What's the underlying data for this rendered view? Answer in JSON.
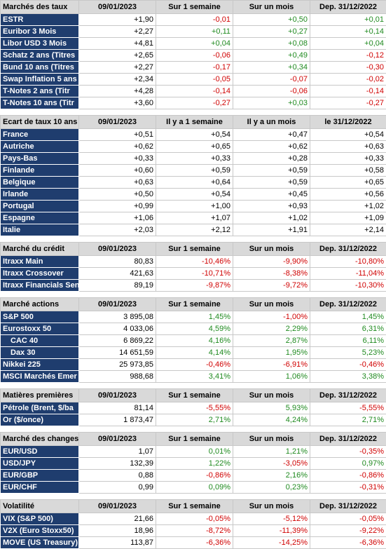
{
  "sections": [
    {
      "id": "taux",
      "headers": [
        "Marchés des taux",
        "09/01/2023",
        "Sur 1 semaine",
        "Sur un mois",
        "Dep. 31/12/2022"
      ],
      "rows": [
        [
          "ESTR",
          "+1,90",
          "-0,01",
          "+0,50",
          "+0,01"
        ],
        [
          "Euribor 3 Mois",
          "+2,27",
          "+0,11",
          "+0,27",
          "+0,14"
        ],
        [
          "Libor USD 3 Mois",
          "+4,81",
          "+0,04",
          "+0,08",
          "+0,04"
        ],
        [
          "Schatz 2 ans (Titres",
          "+2,65",
          "-0,06",
          "+0,49",
          "-0,12"
        ],
        [
          "Bund 10 ans (Titres",
          "+2,27",
          "-0,17",
          "+0,34",
          "-0,30"
        ],
        [
          "Swap Inflation 5 ans",
          "+2,34",
          "-0,05",
          "-0,07",
          "-0,02"
        ],
        [
          "T-Notes 2 ans (Titr",
          "+4,28",
          "-0,14",
          "-0,06",
          "-0,14"
        ],
        [
          "T-Notes 10 ans (Titr",
          "+3,60",
          "-0,27",
          "+0,03",
          "-0,27"
        ]
      ]
    },
    {
      "id": "ecart",
      "headers": [
        "Ecart de taux 10 ans",
        "09/01/2023",
        "Il y a 1 semaine",
        "Il y a un mois",
        "le 31/12/2022"
      ],
      "rows": [
        [
          "France",
          "+0,51",
          "+0,54",
          "+0,47",
          "+0,54"
        ],
        [
          "Autriche",
          "+0,62",
          "+0,65",
          "+0,62",
          "+0,63"
        ],
        [
          "Pays-Bas",
          "+0,33",
          "+0,33",
          "+0,28",
          "+0,33"
        ],
        [
          "Finlande",
          "+0,60",
          "+0,59",
          "+0,59",
          "+0,58"
        ],
        [
          "Belgique",
          "+0,63",
          "+0,64",
          "+0,59",
          "+0,65"
        ],
        [
          "Irlande",
          "+0,50",
          "+0,54",
          "+0,45",
          "+0,56"
        ],
        [
          "Portugal",
          "+0,99",
          "+1,00",
          "+0,93",
          "+1,02"
        ],
        [
          "Espagne",
          "+1,06",
          "+1,07",
          "+1,02",
          "+1,09"
        ],
        [
          "Italie",
          "+2,03",
          "+2,12",
          "+1,91",
          "+2,14"
        ]
      ]
    },
    {
      "id": "credit",
      "headers": [
        "Marché du crédit",
        "09/01/2023",
        "Sur 1 semaine",
        "Sur un mois",
        "Dep. 31/12/2022"
      ],
      "rows": [
        [
          "Itraxx Main",
          "80,83",
          "-10,46%",
          "-9,90%",
          "-10,80%"
        ],
        [
          "Itraxx Crossover",
          "421,63",
          "-10,71%",
          "-8,38%",
          "-11,04%"
        ],
        [
          "Itraxx Financials Sen",
          "89,19",
          "-9,87%",
          "-9,72%",
          "-10,30%"
        ]
      ]
    },
    {
      "id": "actions",
      "headers": [
        "Marché actions",
        "09/01/2023",
        "Sur 1 semaine",
        "Sur un mois",
        "Dep. 31/12/2022"
      ],
      "rows": [
        [
          "S&P 500",
          "3 895,08",
          "1,45%",
          "-1,00%",
          "1,45%"
        ],
        [
          "Eurostoxx 50",
          "4 033,06",
          "4,59%",
          "2,29%",
          "6,31%"
        ],
        [
          "CAC 40",
          "6 869,22",
          "4,16%",
          "2,87%",
          "6,11%"
        ],
        [
          "Dax 30",
          "14 651,59",
          "4,14%",
          "1,95%",
          "5,23%"
        ],
        [
          "Nikkei 225",
          "25 973,85",
          "-0,46%",
          "-6,91%",
          "-0,46%"
        ],
        [
          "MSCI Marchés Emer",
          "988,68",
          "3,41%",
          "1,06%",
          "3,38%"
        ]
      ]
    },
    {
      "id": "matieres",
      "headers": [
        "Matières premières",
        "09/01/2023",
        "Sur 1 semaine",
        "Sur un mois",
        "Dep. 31/12/2022"
      ],
      "rows": [
        [
          "Pétrole (Brent, $/ba",
          "81,14",
          "-5,55%",
          "5,93%",
          "-5,55%"
        ],
        [
          "Or ($/once)",
          "1 873,47",
          "2,71%",
          "4,24%",
          "2,71%"
        ]
      ]
    },
    {
      "id": "changes",
      "headers": [
        "Marché des changes",
        "09/01/2023",
        "Sur 1 semaine",
        "Sur un mois",
        "Dep. 31/12/2022"
      ],
      "rows": [
        [
          "EUR/USD",
          "1,07",
          "0,01%",
          "1,21%",
          "-0,35%"
        ],
        [
          "USD/JPY",
          "132,39",
          "1,22%",
          "-3,05%",
          "0,97%"
        ],
        [
          "EUR/GBP",
          "0,88",
          "-0,86%",
          "2,16%",
          "-0,86%"
        ],
        [
          "EUR/CHF",
          "0,99",
          "0,09%",
          "0,23%",
          "-0,31%"
        ]
      ]
    },
    {
      "id": "volatilite",
      "headers": [
        "Volatilité",
        "09/01/2023",
        "Sur 1 semaine",
        "Sur un mois",
        "Dep. 31/12/2022"
      ],
      "rows": [
        [
          "VIX (S&P 500)",
          "21,66",
          "-0,05%",
          "-5,12%",
          "-0,05%"
        ],
        [
          "V2X (Euro Stoxx50)",
          "18,96",
          "-8,72%",
          "-11,39%",
          "-9,22%"
        ],
        [
          "MOVE (US Treasury)",
          "113,87",
          "-6,36%",
          "-14,25%",
          "-6,36%"
        ]
      ]
    }
  ]
}
